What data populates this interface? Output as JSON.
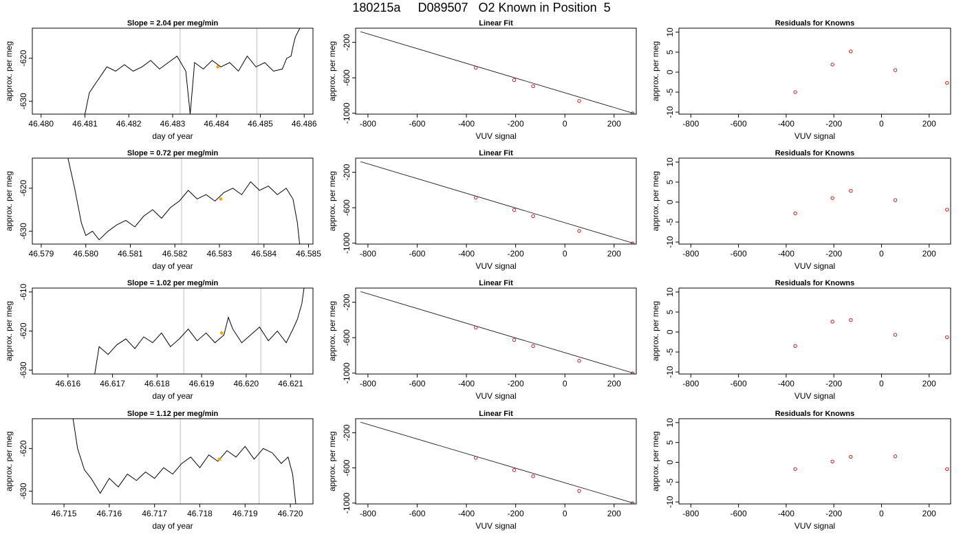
{
  "page": {
    "title": "180215a     D089507   O2 Known in Position  5"
  },
  "colors": {
    "trace": "#000000",
    "marker": "#ffa500",
    "points": "#cc0000",
    "window_lines": "#bebebe",
    "fit_line": "#000000"
  },
  "chart_data": [
    {
      "type": "line",
      "title": "Slope =  2.04  per meg/min",
      "xlabel": "day of year",
      "ylabel": "approx. per meg",
      "xlim": [
        46.4798,
        46.4862
      ],
      "ylim": [
        -633,
        -613
      ],
      "xticks": [
        46.48,
        46.481,
        46.482,
        46.483,
        46.484,
        46.485,
        46.486
      ],
      "xtick_labels": [
        "46.480",
        "46.481",
        "46.482",
        "46.483",
        "46.484",
        "46.485",
        "46.486"
      ],
      "yticks": [
        -630,
        -620
      ],
      "ytick_labels": [
        "-630",
        "-620"
      ],
      "vlines": [
        46.48317,
        46.48492
      ],
      "marker": {
        "x": 46.48403,
        "y": -622.0
      },
      "series": [
        {
          "x": [
            46.481,
            46.4811,
            46.4813,
            46.4815,
            46.4817,
            46.4819,
            46.4821,
            46.4823,
            46.4825,
            46.4827,
            46.4829,
            46.4831,
            46.4833,
            46.4834,
            46.4835,
            46.4837,
            46.4839,
            46.4841,
            46.4843,
            46.4845,
            46.4847,
            46.4849,
            46.4851,
            46.4853,
            46.4855,
            46.4856,
            46.4857,
            46.48575,
            46.4858,
            46.4859
          ],
          "y": [
            -633.0,
            -628.0,
            -625.0,
            -622.0,
            -623.0,
            -621.5,
            -623.0,
            -622.0,
            -620.5,
            -622.5,
            -621.0,
            -619.5,
            -623.0,
            -633.0,
            -621.0,
            -622.5,
            -620.5,
            -622.0,
            -621.0,
            -623.0,
            -619.5,
            -622.0,
            -621.0,
            -623.0,
            -622.5,
            -620.0,
            -619.5,
            -617.0,
            -615.0,
            -613.0
          ]
        }
      ]
    },
    {
      "type": "scatter",
      "title": "Linear Fit",
      "xlabel": "VUV signal",
      "ylabel": "approx. per meg",
      "xlim": [
        -850,
        290
      ],
      "ylim": [
        -1010,
        -40
      ],
      "xticks": [
        -800,
        -600,
        -400,
        -200,
        0,
        200
      ],
      "xtick_labels": [
        "-800",
        "-600",
        "-400",
        "-200",
        "0",
        "200"
      ],
      "yticks": [
        -1000,
        -600,
        -200
      ],
      "ytick_labels": [
        "-1000",
        "-600",
        "-200"
      ],
      "fit_line": {
        "x": [
          -830,
          278
        ],
        "y": [
          -80,
          -1000
        ]
      },
      "series": [
        {
          "x": [
            -362,
            -206,
            -129,
            58,
            275
          ],
          "y": [
            -486,
            -625,
            -695,
            -862,
            -1002
          ]
        }
      ]
    },
    {
      "type": "scatter",
      "title": "Residuals for Knowns",
      "xlabel": "VUV signal",
      "ylabel": "approx. per meg",
      "xlim": [
        -850,
        290
      ],
      "ylim": [
        -10.5,
        11
      ],
      "xticks": [
        -800,
        -600,
        -400,
        -200,
        0,
        200
      ],
      "xtick_labels": [
        "-800",
        "-600",
        "-400",
        "-200",
        "0",
        "200"
      ],
      "yticks": [
        -10,
        -5,
        0,
        5,
        10
      ],
      "ytick_labels": [
        "-10",
        "-5",
        "0",
        "5",
        "10"
      ],
      "series": [
        {
          "x": [
            -362,
            -206,
            -129,
            58,
            275
          ],
          "y": [
            -5.0,
            1.9,
            5.2,
            0.5,
            -2.7
          ]
        }
      ]
    },
    {
      "type": "line",
      "title": "Slope =  0.72  per meg/min",
      "xlabel": "day of year",
      "ylabel": "approx. per meg",
      "xlim": [
        46.5788,
        46.5851
      ],
      "ylim": [
        -633,
        -613
      ],
      "xticks": [
        46.579,
        46.58,
        46.581,
        46.582,
        46.583,
        46.584,
        46.585
      ],
      "xtick_labels": [
        "46.579",
        "46.580",
        "46.581",
        "46.582",
        "46.583",
        "46.584",
        "46.585"
      ],
      "yticks": [
        -630,
        -620
      ],
      "ytick_labels": [
        "-630",
        "-620"
      ],
      "vlines": [
        46.58215,
        46.58387
      ],
      "marker": {
        "x": 46.58303,
        "y": -622.5
      },
      "series": [
        {
          "x": [
            46.5796,
            46.57975,
            46.5799,
            46.58,
            46.58015,
            46.5803,
            46.5805,
            46.5807,
            46.5809,
            46.5811,
            46.5813,
            46.5815,
            46.5817,
            46.5819,
            46.5821,
            46.5823,
            46.5825,
            46.5827,
            46.5829,
            46.5831,
            46.5833,
            46.5835,
            46.5837,
            46.5839,
            46.5841,
            46.5843,
            46.5845,
            46.58465,
            46.58475,
            46.5848
          ],
          "y": [
            -613.0,
            -620.0,
            -628.0,
            -631.0,
            -630.0,
            -632.0,
            -630.0,
            -628.5,
            -627.5,
            -629.0,
            -626.5,
            -625.0,
            -627.0,
            -624.5,
            -623.0,
            -620.5,
            -622.5,
            -621.5,
            -623.0,
            -621.0,
            -620.0,
            -621.5,
            -618.5,
            -620.5,
            -619.5,
            -621.5,
            -620.0,
            -622.5,
            -628.0,
            -633.0
          ]
        }
      ]
    },
    {
      "type": "scatter",
      "title": "Linear Fit",
      "xlabel": "VUV signal",
      "ylabel": "approx. per meg",
      "xlim": [
        -850,
        290
      ],
      "ylim": [
        -1010,
        -40
      ],
      "xticks": [
        -800,
        -600,
        -400,
        -200,
        0,
        200
      ],
      "xtick_labels": [
        "-800",
        "-600",
        "-400",
        "-200",
        "0",
        "200"
      ],
      "yticks": [
        -1000,
        -600,
        -200
      ],
      "ytick_labels": [
        "-1000",
        "-600",
        "-200"
      ],
      "fit_line": {
        "x": [
          -830,
          278
        ],
        "y": [
          -80,
          -1000
        ]
      },
      "series": [
        {
          "x": [
            -362,
            -206,
            -129,
            58,
            275
          ],
          "y": [
            -486,
            -625,
            -695,
            -862,
            -1002
          ]
        }
      ]
    },
    {
      "type": "scatter",
      "title": "Residuals for Knowns",
      "xlabel": "VUV signal",
      "ylabel": "approx. per meg",
      "xlim": [
        -850,
        290
      ],
      "ylim": [
        -10.5,
        11
      ],
      "xticks": [
        -800,
        -600,
        -400,
        -200,
        0,
        200
      ],
      "xtick_labels": [
        "-800",
        "-600",
        "-400",
        "-200",
        "0",
        "200"
      ],
      "yticks": [
        -10,
        -5,
        0,
        5,
        10
      ],
      "ytick_labels": [
        "-10",
        "-5",
        "0",
        "5",
        "10"
      ],
      "series": [
        {
          "x": [
            -362,
            -206,
            -129,
            58,
            275
          ],
          "y": [
            -2.8,
            1.0,
            2.8,
            0.5,
            -1.9
          ]
        }
      ]
    },
    {
      "type": "line",
      "title": "Slope =  1.02  per meg/min",
      "xlabel": "day of year",
      "ylabel": "approx. per meg",
      "xlim": [
        46.6152,
        46.6215
      ],
      "ylim": [
        -631,
        -609
      ]
    },
    {
      "type": "scatter",
      "title": "Linear Fit",
      "xlabel": "VUV signal",
      "ylabel": "approx. per meg",
      "xlim": [
        -850,
        290
      ],
      "ylim": [
        -1010,
        -40
      ],
      "xticks": [
        -800,
        -600,
        -400,
        -200,
        0,
        200
      ],
      "xtick_labels": [
        "-800",
        "-600",
        "-400",
        "-200",
        "0",
        "200"
      ],
      "yticks": [
        -1000,
        -600,
        -200
      ],
      "ytick_labels": [
        "-1000",
        "-600",
        "-200"
      ],
      "fit_line": {
        "x": [
          -830,
          278
        ],
        "y": [
          -80,
          -1000
        ]
      },
      "series": [
        {
          "x": [
            -362,
            -206,
            -129,
            58,
            275
          ],
          "y": [
            -486,
            -625,
            -695,
            -862,
            -1002
          ]
        }
      ]
    },
    {
      "type": "scatter",
      "title": "Residuals for Knowns",
      "xlabel": "VUV signal",
      "ylabel": "approx. per meg",
      "xlim": [
        -850,
        290
      ],
      "ylim": [
        -10.5,
        11
      ],
      "xticks": [
        -800,
        -600,
        -400,
        -200,
        0,
        200
      ],
      "xtick_labels": [
        "-800",
        "-600",
        "-400",
        "-200",
        "0",
        "200"
      ],
      "yticks": [
        -10,
        -5,
        0,
        5,
        10
      ],
      "ytick_labels": [
        "-10",
        "-5",
        "0",
        "5",
        "10"
      ],
      "series": [
        {
          "x": [
            -362,
            -206,
            -129,
            58,
            275
          ],
          "y": [
            -3.5,
            2.6,
            3.0,
            -0.7,
            -1.3
          ]
        }
      ]
    },
    {
      "type": "line",
      "title": "Slope =  1.12  per meg/min",
      "xlabel": "day of year",
      "ylabel": "approx. per meg",
      "xlim": [
        46.7143,
        46.7205
      ],
      "ylim": [
        -633,
        -613
      ],
      "xticks": [
        46.715,
        46.716,
        46.717,
        46.718,
        46.719,
        46.72
      ],
      "xtick_labels": [
        "46.715",
        "46.716",
        "46.717",
        "46.718",
        "46.719",
        "46.720"
      ],
      "yticks": [
        -630,
        -620
      ],
      "ytick_labels": [
        "-630",
        "-620"
      ],
      "vlines": [
        46.71757,
        46.71931
      ],
      "marker": {
        "x": 46.71843,
        "y": -622.5
      },
      "series": [
        {
          "x": [
            46.7152,
            46.7153,
            46.71545,
            46.7156,
            46.7158,
            46.716,
            46.7162,
            46.7164,
            46.7166,
            46.7168,
            46.717,
            46.7172,
            46.7174,
            46.7176,
            46.7178,
            46.718,
            46.7182,
            46.7184,
            46.7186,
            46.7188,
            46.719,
            46.7192,
            46.7194,
            46.7196,
            46.7198,
            46.71995,
            46.72005,
            46.72012
          ],
          "y": [
            -613.0,
            -620.0,
            -625.0,
            -627.0,
            -630.5,
            -627.0,
            -629.0,
            -626.0,
            -627.5,
            -625.5,
            -627.0,
            -624.5,
            -626.0,
            -623.5,
            -622.0,
            -624.5,
            -621.5,
            -623.0,
            -620.5,
            -622.0,
            -619.5,
            -622.5,
            -620.0,
            -621.0,
            -623.5,
            -622.0,
            -626.0,
            -633.0
          ]
        }
      ]
    },
    {
      "type": "scatter",
      "title": "Linear Fit",
      "xlabel": "VUV signal",
      "ylabel": "approx. per meg",
      "xlim": [
        -850,
        290
      ],
      "ylim": [
        -1010,
        -40
      ],
      "xticks": [
        -800,
        -600,
        -400,
        -200,
        0,
        200
      ],
      "xtick_labels": [
        "-800",
        "-600",
        "-400",
        "-200",
        "0",
        "200"
      ],
      "yticks": [
        -1000,
        -600,
        -200
      ],
      "ytick_labels": [
        "-1000",
        "-600",
        "-200"
      ],
      "fit_line": {
        "x": [
          -830,
          278
        ],
        "y": [
          -80,
          -1000
        ]
      },
      "series": [
        {
          "x": [
            -362,
            -206,
            -129,
            58,
            275
          ],
          "y": [
            -486,
            -625,
            -695,
            -862,
            -1002
          ]
        }
      ]
    },
    {
      "type": "scatter",
      "title": "Residuals for Knowns",
      "xlabel": "VUV signal",
      "ylabel": "approx. per meg",
      "xlim": [
        -850,
        290
      ],
      "ylim": [
        -10.5,
        11
      ],
      "xticks": [
        -800,
        -600,
        -400,
        -200,
        0,
        200
      ],
      "xtick_labels": [
        "-800",
        "-600",
        "-400",
        "-200",
        "0",
        "200"
      ],
      "yticks": [
        -10,
        -5,
        0,
        5,
        10
      ],
      "ytick_labels": [
        "-10",
        "-5",
        "0",
        "5",
        "10"
      ],
      "series": [
        {
          "x": [
            -362,
            -206,
            -129,
            58,
            275
          ],
          "y": [
            -1.7,
            0.2,
            1.4,
            1.5,
            -1.7
          ]
        }
      ]
    }
  ]
}
